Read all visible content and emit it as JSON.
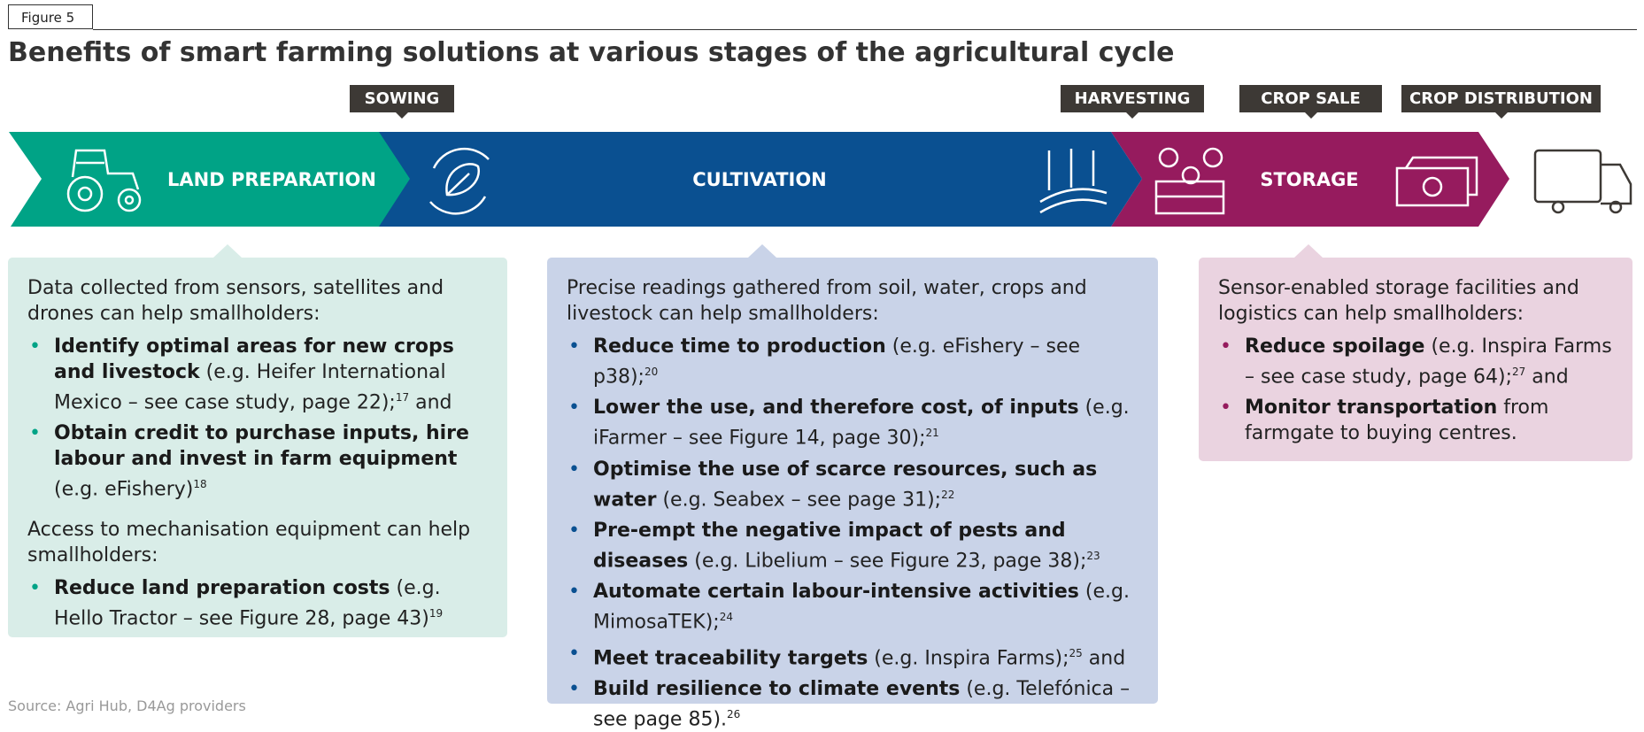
{
  "figure_label": "Figure 5",
  "title": "Benefits of smart farming solutions at various stages of the agricultural cycle",
  "stage_tags": [
    "SOWING",
    "HARVESTING",
    "CROP SALE",
    "CROP DISTRIBUTION"
  ],
  "banner": [
    "LAND PREPARATION",
    "CULTIVATION",
    "STORAGE"
  ],
  "panels": [
    {
      "groups": [
        {
          "intro": "Data collected from sensors, satellites and drones can help smallholders:",
          "bullets": [
            {
              "bold": "Identify optimal areas for new crops and livestock",
              "text": " (e.g. Heifer International Mexico – see case study, page 22);",
              "sup": "17",
              "after": " and"
            },
            {
              "bold": "Obtain credit to purchase inputs, hire labour and invest in farm equipment",
              "text": " (e.g. eFishery)",
              "sup": "18"
            }
          ]
        },
        {
          "intro": "Access to mechanisation equipment can help smallholders:",
          "bullets": [
            {
              "bold": "Reduce land preparation costs",
              "text": " (e.g. Hello Tractor – see Figure 28, page 43)",
              "sup": "19"
            }
          ]
        }
      ]
    },
    {
      "groups": [
        {
          "intro": "Precise readings gathered from soil, water, crops and livestock can help smallholders:",
          "bullets": [
            {
              "bold": "Reduce time to production",
              "text": " (e.g. eFishery – see p38);",
              "sup": "20"
            },
            {
              "bold": "Lower the use, and therefore cost, of inputs",
              "text": " (e.g. iFarmer – see Figure 14, page 30);",
              "sup": "21"
            },
            {
              "bold": "Optimise the use of scarce resources, such as water",
              "text": " (e.g. Seabex – see page 31);",
              "sup": "22"
            },
            {
              "bold": "Pre-empt the negative impact of pests and diseases",
              "text": " (e.g. Libelium – see Figure 23, page 38);",
              "sup": "23"
            },
            {
              "bold": "Automate certain labour-intensive activities",
              "text": " (e.g. MimosaTEK);",
              "sup": "24"
            },
            {
              "bold": "Meet traceability targets",
              "text": " (e.g. Inspira Farms);",
              "sup": "25",
              "after": " and"
            },
            {
              "bold": "Build resilience to climate events",
              "text": " (e.g. Telefónica – see page 85).",
              "sup": "26"
            }
          ]
        }
      ]
    },
    {
      "groups": [
        {
          "intro": "Sensor-enabled storage facilities and logistics can help smallholders:",
          "bullets": [
            {
              "bold": "Reduce spoilage",
              "text": " (e.g. Inspira Farms – see case study, page 64);",
              "sup": "27",
              "after": " and"
            },
            {
              "bold": "Monitor transportation",
              "text": " from farmgate to buying centres."
            }
          ]
        }
      ]
    }
  ],
  "source": "Source: Agri Hub, D4Ag providers"
}
